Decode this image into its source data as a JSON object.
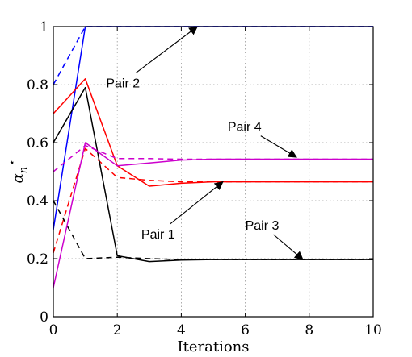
{
  "chart_data": {
    "type": "line",
    "xlabel": "Iterations",
    "ylabel": "α*n",
    "xlim": [
      0,
      10
    ],
    "ylim": [
      0,
      1
    ],
    "xticks": [
      0,
      2,
      4,
      6,
      8,
      10
    ],
    "yticks": [
      0,
      0.2,
      0.4,
      0.6,
      0.8,
      1
    ],
    "grid": true,
    "x": [
      0,
      1,
      2,
      3,
      4,
      5,
      6,
      7,
      8,
      9,
      10
    ],
    "series": [
      {
        "color": "#0000ff",
        "style": "solid",
        "values": [
          0.3,
          1.0,
          1.0,
          1.0,
          1.0,
          1.0,
          1.0,
          1.0,
          1.0,
          1.0,
          1.0
        ]
      },
      {
        "color": "#0000ff",
        "style": "dashed",
        "values": [
          0.8,
          1.0,
          1.0,
          1.0,
          1.0,
          1.0,
          1.0,
          1.0,
          1.0,
          1.0,
          1.0
        ]
      },
      {
        "color": "#ff0000",
        "style": "solid",
        "values": [
          0.7,
          0.82,
          0.52,
          0.45,
          0.46,
          0.465,
          0.465,
          0.465,
          0.465,
          0.465,
          0.465
        ]
      },
      {
        "color": "#ff0000",
        "style": "dashed",
        "values": [
          0.22,
          0.58,
          0.48,
          0.47,
          0.465,
          0.465,
          0.465,
          0.465,
          0.465,
          0.465,
          0.465
        ]
      },
      {
        "color": "#000000",
        "style": "solid",
        "values": [
          0.6,
          0.79,
          0.21,
          0.19,
          0.195,
          0.197,
          0.197,
          0.197,
          0.197,
          0.197,
          0.197
        ]
      },
      {
        "color": "#000000",
        "style": "dashed",
        "values": [
          0.4,
          0.2,
          0.205,
          0.2,
          0.197,
          0.197,
          0.197,
          0.197,
          0.197,
          0.197,
          0.197
        ]
      },
      {
        "color": "#cc00cc",
        "style": "solid",
        "values": [
          0.1,
          0.6,
          0.52,
          0.53,
          0.54,
          0.543,
          0.543,
          0.543,
          0.543,
          0.543,
          0.543
        ]
      },
      {
        "color": "#cc00cc",
        "style": "dashed",
        "values": [
          0.5,
          0.59,
          0.545,
          0.545,
          0.543,
          0.543,
          0.543,
          0.543,
          0.543,
          0.543,
          0.543
        ]
      }
    ],
    "annotations": [
      {
        "text": "Pair 2",
        "x": 1.65,
        "y": 0.79,
        "arrow_to": [
          4.5,
          1.0
        ]
      },
      {
        "text": "Pair 4",
        "x": 5.45,
        "y": 0.64,
        "arrow_to": [
          7.6,
          0.55
        ]
      },
      {
        "text": "Pair 1",
        "x": 2.75,
        "y": 0.27,
        "arrow_to": [
          5.3,
          0.465
        ]
      },
      {
        "text": "Pair 3",
        "x": 6.0,
        "y": 0.3,
        "arrow_to": [
          7.8,
          0.197
        ]
      }
    ]
  }
}
